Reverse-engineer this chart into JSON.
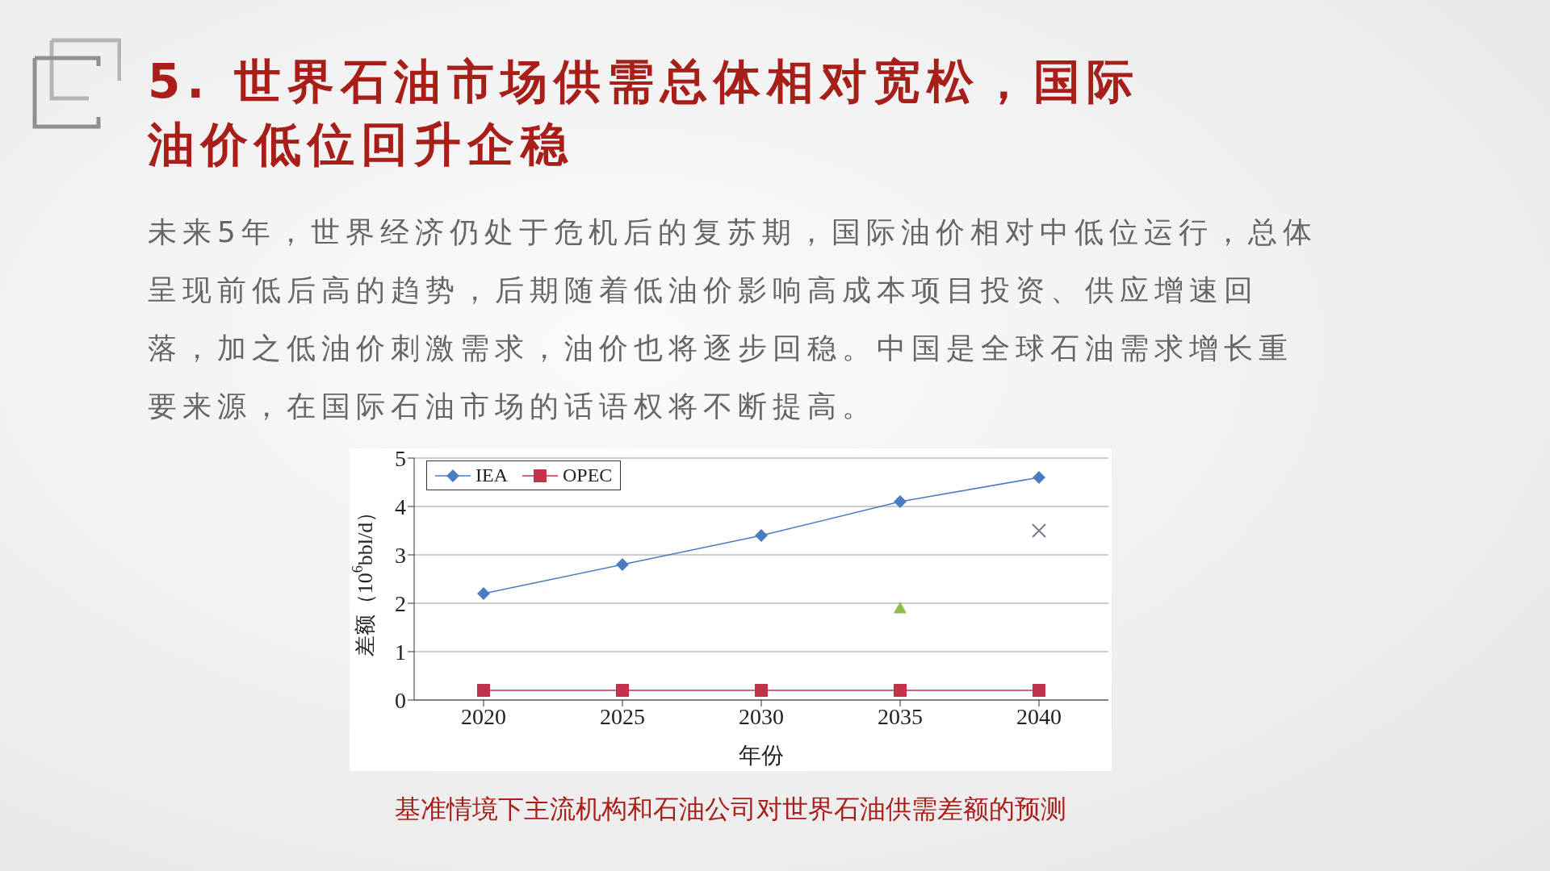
{
  "chart_data": {
    "type": "line",
    "title": "5. 世界石油市场供需总体相对宽松，国际油价低位回升企稳",
    "subtitle": "未来5年，世界经济仍处于危机后的复苏期，国际油价相对中低位运行，总体呈现前低后高的趋势，后期随着低油价影响高成本项目投资、供应增速回落，加之低油价刺激需求，油价也将逐步回稳。中国是全球石油需求增长重要来源，在国际石油市场的话语权将不断提高。",
    "xlabel": "年份",
    "ylabel": "差额（10$^{6}$bbl/d）",
    "annotations": [
      "基准情境下主流机构和石油公司对世界石油供需差额的预测"
    ],
    "categories": [
      "2020",
      "2025",
      "2030",
      "2035",
      "2040"
    ],
    "series": [
      {
        "name": "IEA",
        "color": "#4a7cc4",
        "marker": "diamond",
        "values": [
          2.2,
          2.8,
          3.4,
          4.1,
          4.6
        ]
      },
      {
        "name": "OPEC",
        "color": "#c0334a",
        "marker": "square",
        "values": [
          0.2,
          0.2,
          0.2,
          0.2,
          0.2
        ]
      },
      {
        "type": "scatter",
        "color": "#8cbf4a",
        "marker": "triangle",
        "values": [
          null,
          null,
          null,
          1.9,
          null
        ]
      },
      {
        "type": "scatter",
        "color": "#7a7a8a",
        "marker": "cross",
        "values": [
          null,
          null,
          null,
          null,
          3.5
        ]
      }
    ],
    "ylim": [
      0,
      5
    ],
    "yticks": [
      0,
      1,
      2,
      3,
      4,
      5
    ],
    "grid": "y",
    "legend": "top left",
    "line_style": "solid"
  }
}
